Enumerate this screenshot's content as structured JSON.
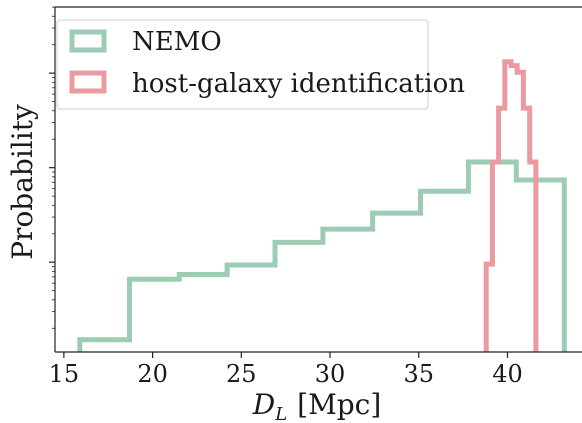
{
  "chart_data": {
    "type": "histogram-step",
    "xlabel": "D_L [Mpc]",
    "xlabel_main": "D",
    "xlabel_sub": "L",
    "xlabel_unit": "[Mpc]",
    "ylabel": "Probability",
    "xlim": [
      14.5,
      44.2
    ],
    "ylim_log10": [
      -3.95,
      -0.3
    ],
    "yscale": "log",
    "x_ticks": [
      15,
      20,
      25,
      30,
      35,
      40
    ],
    "x_tick_labels": [
      "15",
      "20",
      "25",
      "30",
      "35",
      "40"
    ],
    "y_major_ticks_log10": [
      -1,
      -2,
      -3
    ],
    "y_tick_labels_visible": false,
    "grid": false,
    "legend_position": "upper-left",
    "series": [
      {
        "name": "NEMO",
        "color": "#9ccdb4",
        "edges": [
          15.9,
          18.7,
          21.5,
          24.2,
          26.9,
          29.6,
          32.4,
          35.1,
          37.8,
          40.5,
          43.2
        ],
        "values_log10": [
          -3.82,
          -3.18,
          -3.13,
          -3.03,
          -2.79,
          -2.65,
          -2.48,
          -2.25,
          -1.94,
          -2.13
        ]
      },
      {
        "name": "host-galaxy identification",
        "color": "#eb9ba0",
        "edges": [
          38.8,
          39.15,
          39.5,
          39.85,
          40.2,
          40.55,
          40.9,
          41.25,
          41.6
        ],
        "values_log10": [
          -3.02,
          -1.94,
          -1.37,
          -0.88,
          -0.92,
          -0.99,
          -1.37,
          -1.94
        ]
      }
    ]
  }
}
